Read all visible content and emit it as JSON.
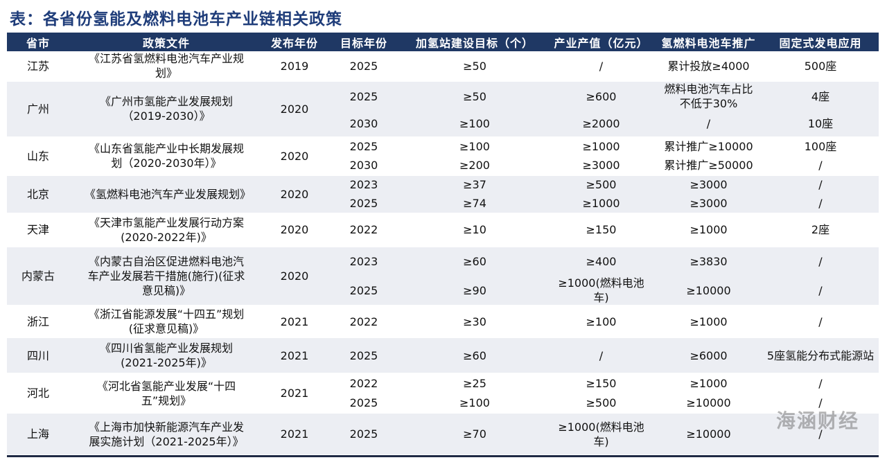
{
  "title": "表：各省份氢能及燃料电池车产业链相关政策",
  "header": [
    "省市",
    "政策文件",
    "发布年份",
    "目标年份",
    "加氢站建设目标（个）",
    "产业产值（亿元）",
    "氢燃料电池车推广",
    "固定式发电应用"
  ],
  "groups": [
    {
      "province": "江苏",
      "document": "《江苏省氢燃料电池汽车产业规划》",
      "year": "2019",
      "targets": [
        [
          "2025",
          "≥50",
          "/",
          "累计投放≥4000",
          "500座"
        ]
      ]
    },
    {
      "province": "广州",
      "document": "《广州市氢能产业发展规划（2019-2030）》",
      "year": "2020",
      "targets": [
        [
          "2025",
          "≥50",
          "≥600",
          "燃料电池汽车占比不低于30%",
          "4座"
        ],
        [
          "2030",
          "≥100",
          "≥2000",
          "/",
          "10座"
        ]
      ]
    },
    {
      "province": "山东",
      "document": "《山东省氢能产业中长期发展规划（2020-2030年）》",
      "year": "2020",
      "targets": [
        [
          "2025",
          "≥100",
          "≥1000",
          "累计推广≥10000",
          "100座"
        ],
        [
          "2030",
          "≥200",
          "≥3000",
          "累计推广≥50000",
          "/"
        ]
      ]
    },
    {
      "province": "北京",
      "document": "《氢燃料电池汽车产业发展规划》",
      "year": "2020",
      "targets": [
        [
          "2023",
          "≥37",
          "≥500",
          "≥3000",
          "/"
        ],
        [
          "2025",
          "≥74",
          "≥1000",
          "≥3000",
          "/"
        ]
      ]
    },
    {
      "province": "天津",
      "document": "《天津市氢能产业发展行动方案(2020-2022年)》",
      "year": "2020",
      "targets": [
        [
          "2022",
          "≥10",
          "≥150",
          "≥1000",
          "2座"
        ]
      ]
    },
    {
      "province": "内蒙古",
      "document": "《内蒙古自治区促进燃料电池汽车产业发展若干措施(施行)(征求意见稿)》",
      "year": "2020",
      "targets": [
        [
          "2023",
          "≥60",
          "≥400",
          "≥3830",
          "/"
        ],
        [
          "2025",
          "≥90",
          "≥1000(燃料电池车)",
          "≥10000",
          "/"
        ]
      ]
    },
    {
      "province": "浙江",
      "document": "《浙江省能源发展“十四五”规划(征求意见稿)》",
      "year": "2021",
      "targets": [
        [
          "2022",
          "≥30",
          "≥100",
          "≥1000",
          "/"
        ]
      ]
    },
    {
      "province": "四川",
      "document": "《四川省氢能产业发展规划(2021-2025年)》",
      "year": "2021",
      "targets": [
        [
          "2025",
          "≥60",
          "/",
          "≥6000",
          "5座氢能分布式能源站"
        ]
      ]
    },
    {
      "province": "河北",
      "document": "《河北省氢能产业发展“十四五”规划》",
      "year": "2021",
      "targets": [
        [
          "2022",
          "≥25",
          "≥150",
          "≥1000",
          "/"
        ],
        [
          "2025",
          "≥100",
          "≥500",
          "≥10000",
          "/"
        ]
      ]
    },
    {
      "province": "上海",
      "document": "《上海市加快新能源汽车产业发展实施计划（2021-2025年）》",
      "year": "2021",
      "targets": [
        [
          "2025",
          "≥70",
          "≥1000(燃料电池车)",
          "≥10000",
          "/"
        ]
      ]
    }
  ],
  "watermark": "海涵财经"
}
